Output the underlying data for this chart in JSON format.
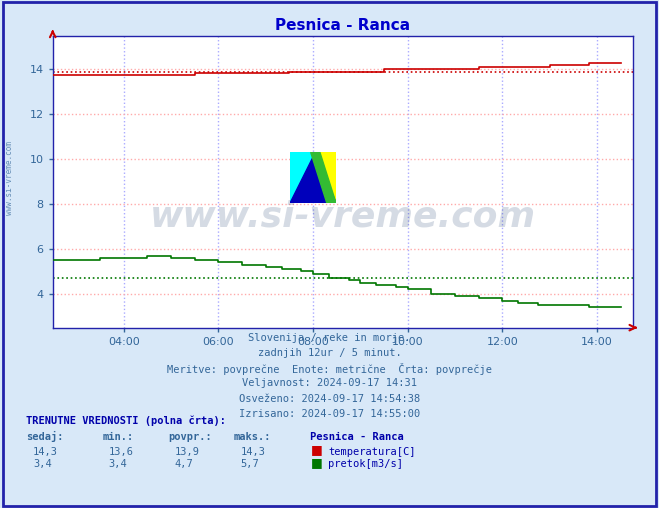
{
  "title": "Pesnica - Ranca",
  "bg_color": "#d8e8f8",
  "plot_bg_color": "#ffffff",
  "border_color": "#2222aa",
  "title_color": "#0000cc",
  "grid_v_color": "#aaaaff",
  "grid_h_color": "#ffaaaa",
  "xlabel": "",
  "ylabel": "",
  "xlim_hours": [
    2.5,
    14.75
  ],
  "ylim": [
    2.5,
    15.5
  ],
  "ytick_vals": [
    4,
    6,
    8,
    10,
    12,
    14
  ],
  "xtick_labels": [
    "04:00",
    "06:00",
    "08:00",
    "10:00",
    "12:00",
    "14:00"
  ],
  "xtick_positions": [
    4,
    6,
    8,
    10,
    12,
    14
  ],
  "temp_color": "#cc0000",
  "flow_color": "#007700",
  "temp_avg_val": 13.9,
  "flow_avg_val": 4.7,
  "watermark_text": "www.si-vreme.com",
  "watermark_color": "#1a3a6b",
  "watermark_alpha": 0.18,
  "sidebar_text": "www.si-vreme.com",
  "sidebar_color": "#336699",
  "footer_lines": [
    "Slovenija / reke in morje.",
    "zadnjih 12ur / 5 minut.",
    "Meritve: povprečne  Enote: metrične  Črta: povprečje",
    "Veljavnost: 2024-09-17 14:31",
    "Osveženo: 2024-09-17 14:54:38",
    "Izrisano: 2024-09-17 14:55:00"
  ],
  "bottom_header": "TRENUTNE VREDNOSTI (polna črta):",
  "table_headers": [
    "sedaj:",
    "min.:",
    "povpr.:",
    "maks.:",
    "Pesnica - Ranca"
  ],
  "table_row1": [
    "14,3",
    "13,6",
    "13,9",
    "14,3",
    "temperatura[C]"
  ],
  "table_row2": [
    "3,4",
    "3,4",
    "4,7",
    "5,7",
    "pretok[m3/s]"
  ],
  "temp_color_legend": "#cc0000",
  "flow_color_legend": "#007700"
}
